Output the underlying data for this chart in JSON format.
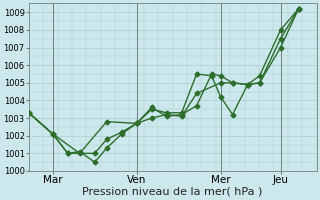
{
  "xlabel": "Pression niveau de la mer( hPa )",
  "background_color": "#cce8ec",
  "grid_color": "#aacccc",
  "line_color": "#2d6e2d",
  "ylim": [
    1000,
    1009.5
  ],
  "yticks": [
    1000,
    1001,
    1002,
    1003,
    1004,
    1005,
    1006,
    1007,
    1008,
    1009
  ],
  "xtick_labels": [
    "Mar",
    "Ven",
    "Mer",
    "Jeu"
  ],
  "xtick_positions": [
    16,
    72,
    128,
    168
  ],
  "xlim": [
    0,
    192
  ],
  "n_xgrid": 20,
  "series1_x": [
    0,
    16,
    34,
    52,
    72,
    82,
    92,
    102,
    112,
    128,
    136,
    146,
    154,
    168,
    180
  ],
  "series1_y": [
    1003.3,
    1002.1,
    1001.0,
    1002.8,
    1002.7,
    1003.0,
    1003.2,
    1003.1,
    1004.4,
    1005.0,
    1005.0,
    1004.9,
    1005.0,
    1007.0,
    1009.2
  ],
  "series2_x": [
    0,
    16,
    26,
    34,
    44,
    52,
    62,
    72,
    82,
    92,
    102,
    112,
    122,
    128,
    136,
    146,
    154,
    168,
    180
  ],
  "series2_y": [
    1003.3,
    1002.1,
    1001.0,
    1001.1,
    1000.5,
    1001.3,
    1002.1,
    1002.7,
    1003.5,
    1003.3,
    1003.3,
    1005.5,
    1005.4,
    1004.2,
    1003.2,
    1004.9,
    1005.4,
    1008.0,
    1009.2
  ],
  "series3_x": [
    0,
    16,
    26,
    44,
    52,
    62,
    72,
    82,
    92,
    102,
    112,
    122,
    128,
    136,
    146,
    154,
    168,
    180
  ],
  "series3_y": [
    1003.3,
    1002.1,
    1001.0,
    1001.0,
    1001.8,
    1002.2,
    1002.7,
    1003.6,
    1003.1,
    1003.2,
    1003.7,
    1005.5,
    1005.4,
    1005.0,
    1004.9,
    1005.0,
    1007.5,
    1009.2
  ],
  "vline_positions": [
    16,
    72,
    128,
    168
  ],
  "ylabel_fontsize": 6.0,
  "xlabel_fontsize": 8.0,
  "xtick_fontsize": 7.5,
  "line_width": 1.0,
  "marker_size": 2.5
}
